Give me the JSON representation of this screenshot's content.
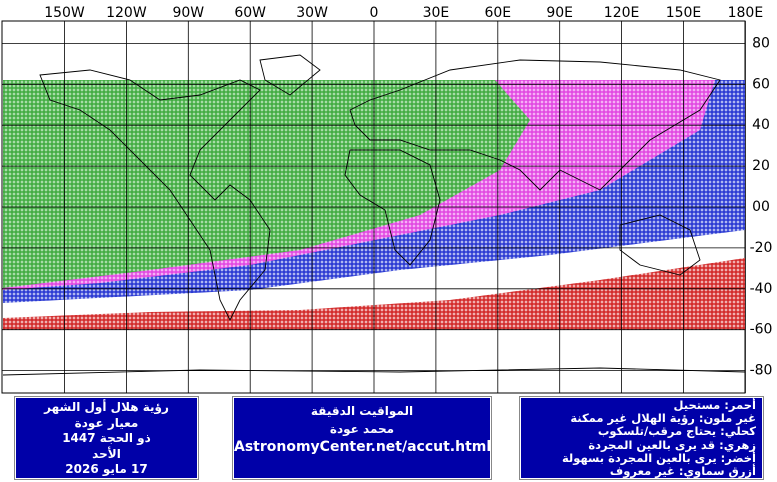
{
  "map": {
    "lon_labels": [
      "150W",
      "120W",
      "90W",
      "60W",
      "30W",
      "0",
      "30E",
      "60E",
      "90E",
      "120E",
      "150E",
      "180E"
    ],
    "lat_labels": [
      "80",
      "60",
      "40",
      "20",
      "00",
      "-20",
      "-40",
      "-60",
      "-80"
    ]
  },
  "boxes": [
    {
      "lines": [
        "رؤية هلال أول الشهر",
        "معيار عودة",
        "ذو الحجة 1447",
        "الأحد",
        "17 مايو 2026"
      ]
    },
    {
      "lines": [
        "المواقيت الدقيقة",
        "محمد عودة",
        "AstronomyCenter.net/accut.html"
      ]
    },
    {
      "lines": [
        "أحمر: مستحيل",
        "غير ملون: رؤية الهلال غير ممكنة",
        "كحلي: يحتاج مرقب/تلسكوب",
        "زهري: قد يرى بالعين المجردة",
        "أخضر: يرى بالعين المجردة بسهولة",
        "أزرق سماوي: غير معروف"
      ]
    }
  ]
}
